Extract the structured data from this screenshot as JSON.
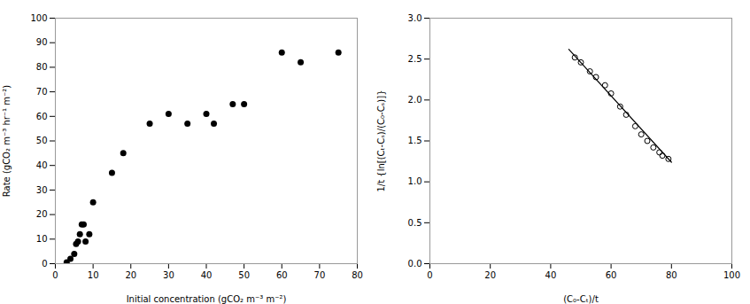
{
  "chart_data": [
    {
      "type": "scatter",
      "x": [
        3,
        4,
        5,
        5.5,
        6,
        6.5,
        7,
        7.5,
        8,
        9,
        10,
        15,
        18,
        25,
        30,
        35,
        40,
        42,
        47,
        50,
        60,
        65,
        75
      ],
      "values": [
        0.5,
        2,
        4,
        8,
        9,
        12,
        16,
        16,
        9,
        12,
        25,
        37,
        45,
        57,
        61,
        57,
        61,
        57,
        65,
        65,
        86,
        82,
        86
      ],
      "color": "black",
      "marker": "circle",
      "xlabel": "Initial concentration (gCO₂ m⁻³ m⁻²)",
      "ylabel": "Rate (gCO₂ m⁻³ hr⁻¹ m⁻²)",
      "xlim": [
        0,
        80
      ],
      "ylim": [
        0,
        100
      ],
      "xticks": [
        0,
        10,
        20,
        30,
        40,
        50,
        60,
        70,
        80
      ],
      "yticks": [
        0,
        10,
        20,
        30,
        40,
        50,
        60,
        70,
        80,
        90,
        100
      ]
    },
    {
      "type": "scatter",
      "series": [
        {
          "type": "scatter",
          "x": [
            48,
            50,
            53,
            55,
            58,
            60,
            63,
            65,
            68,
            70,
            72,
            74,
            76,
            77,
            79
          ],
          "values": [
            2.52,
            2.46,
            2.35,
            2.28,
            2.18,
            2.08,
            1.92,
            1.82,
            1.68,
            1.58,
            1.5,
            1.42,
            1.36,
            1.32,
            1.28
          ],
          "color": "black",
          "marker": "open_circle"
        },
        {
          "type": "line",
          "x": [
            46,
            80
          ],
          "values": [
            2.62,
            1.24
          ],
          "color": "black",
          "line_style": "solid"
        }
      ],
      "xlabel": "(C₀-Cₜ)/t",
      "ylabel": "1/t {ln[(Cₜ-Cₛ)/(C₀-Cₛ)]}",
      "xlim": [
        0,
        100
      ],
      "ylim": [
        0,
        3
      ],
      "xticks": [
        0,
        20,
        40,
        60,
        80,
        100
      ],
      "yticks": [
        {
          "value": 0,
          "label": "0.0"
        },
        0.5,
        {
          "value": 1.0,
          "label": "1.0"
        },
        1.5,
        {
          "value": 2.0,
          "label": "2.0"
        },
        2.5,
        {
          "value": 3.0,
          "label": "3.0"
        }
      ]
    }
  ]
}
